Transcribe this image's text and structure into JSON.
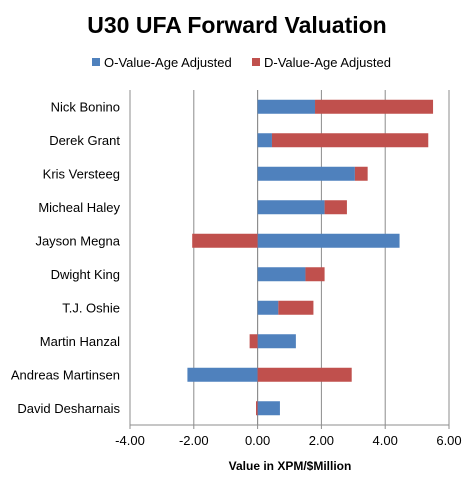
{
  "chart_data": {
    "type": "bar",
    "orientation": "horizontal",
    "stacked": true,
    "title": "U30 UFA Forward Valuation",
    "xlabel": "Value in XPM/$Million",
    "ylabel": "",
    "xlim": [
      -4,
      6
    ],
    "xticks": [
      "-4.00",
      "-2.00",
      "0.00",
      "2.00",
      "4.00",
      "6.00"
    ],
    "grid": "vertical",
    "legend_position": "top",
    "categories": [
      "Nick Bonino",
      "Derek Grant",
      "Kris Versteeg",
      "Micheal Haley",
      "Jayson Megna",
      "Dwight King",
      "T.J. Oshie",
      "Martin Hanzal",
      "Andreas Martinsen",
      "David Desharnais"
    ],
    "series": [
      {
        "name": "O-Value-Age Adjusted",
        "color": "#4f81bd",
        "values": [
          1.8,
          0.45,
          3.05,
          2.1,
          4.45,
          1.5,
          0.65,
          1.2,
          -2.2,
          0.7
        ]
      },
      {
        "name": "D-Value-Age Adjusted",
        "color": "#c0504d",
        "values": [
          3.7,
          4.9,
          0.4,
          0.7,
          -2.05,
          0.6,
          1.1,
          -0.25,
          2.95,
          -0.05
        ]
      }
    ]
  }
}
